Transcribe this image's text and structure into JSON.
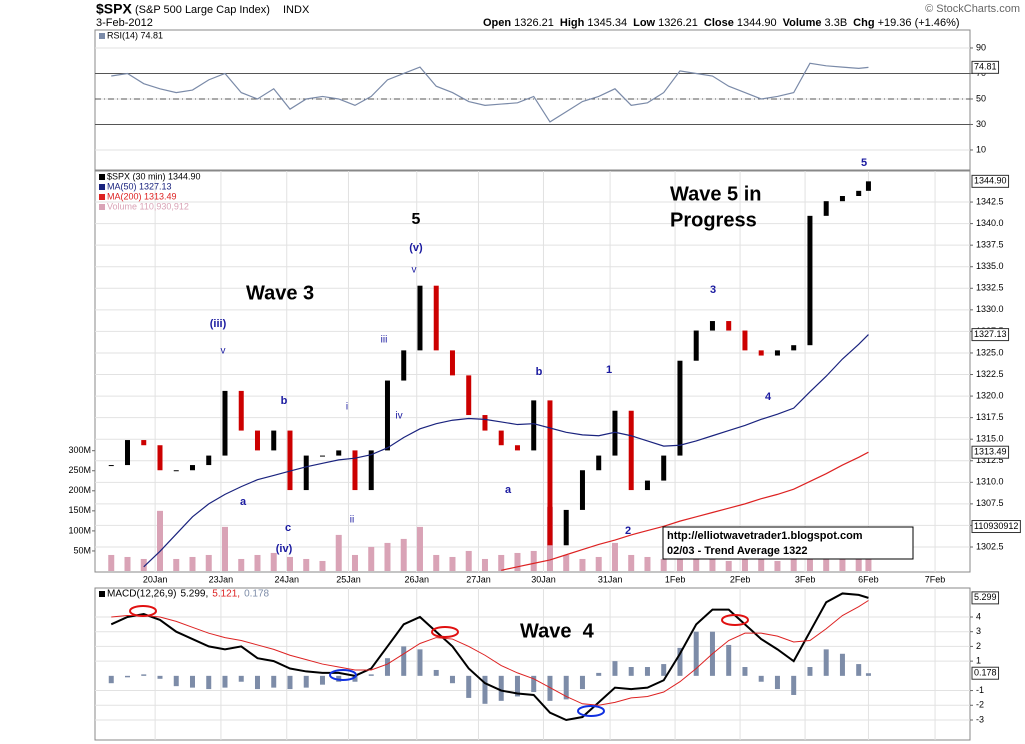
{
  "header": {
    "title": "$SPX",
    "subtitle": "(S&P 500 Large Cap Index)",
    "exchange": "INDX",
    "date": "3-Feb-2012",
    "credit": "© StockCharts.com",
    "quote": [
      {
        "label": "Open",
        "value": "1326.21"
      },
      {
        "label": "High",
        "value": "1345.34"
      },
      {
        "label": "Low",
        "value": "1326.21"
      },
      {
        "label": "Close",
        "value": "1344.90"
      },
      {
        "label": "Volume",
        "value": "3.3B"
      },
      {
        "label": "Chg",
        "value": "+19.36 (+1.46%)"
      }
    ]
  },
  "annotations": [
    "5",
    "(v)",
    "v",
    "Wave 3",
    "(iii)",
    "v",
    "iii",
    "iv",
    "i",
    "ii",
    "b",
    "a",
    "c",
    "(iv)",
    "a",
    "b",
    "1",
    "2",
    "3",
    "4",
    "5",
    "Wave 5 in",
    "Progress",
    "Wave  4"
  ],
  "note_box": [
    "http://elliotwavetrader1.blogspot.com",
    "02/03 - Trend Average 1322"
  ],
  "chart_data": [
    {
      "type": "line",
      "xlim": [
        0,
        53.85
      ],
      "ylim": [
        -5.7,
        104.1
      ],
      "yticks": [
        90,
        70,
        50,
        30,
        10
      ],
      "bands": [
        70,
        30
      ],
      "midline": 50,
      "grid": true,
      "x": [
        1,
        2,
        3,
        4,
        5,
        6,
        7,
        8,
        9,
        10,
        11,
        12,
        13,
        14,
        15,
        16,
        17,
        18,
        19,
        20,
        21,
        22,
        23,
        24,
        25,
        26,
        27,
        28,
        29,
        30,
        31,
        32,
        33,
        34,
        35,
        36,
        37,
        38,
        39,
        40,
        41,
        42,
        43,
        44,
        45,
        46,
        47,
        47.6
      ],
      "series": [
        {
          "name": "RSI(14) 74.81",
          "tag": "74.81",
          "color": "#7a8aa8",
          "style": "line",
          "values": [
            68,
            70,
            62,
            58,
            55,
            57,
            65,
            70,
            55,
            50,
            58,
            42,
            50,
            52,
            50,
            45,
            52,
            65,
            70,
            75,
            60,
            55,
            48,
            45,
            46,
            47,
            52,
            32,
            40,
            48,
            52,
            58,
            45,
            47,
            55,
            72,
            70,
            68,
            60,
            55,
            50,
            52,
            55,
            78,
            76,
            75,
            74,
            74.81
          ]
        }
      ]
    },
    {
      "type": "candlestick",
      "xlim": [
        0,
        53.85
      ],
      "ylim": [
        1299.6,
        1346.1
      ],
      "grid": true,
      "yticks": [
        1302.5,
        {
          "value": 1305,
          "label": "1305.0"
        },
        1307.5,
        {
          "value": 1310,
          "label": "1310.0"
        },
        1312.5,
        {
          "value": 1315,
          "label": "1315.0"
        },
        1317.5,
        {
          "value": 1320,
          "label": "1320.0"
        },
        1322.5,
        {
          "value": 1325,
          "label": "1325.0"
        },
        1327.5,
        {
          "value": 1330,
          "label": "1330.0"
        },
        1332.5,
        {
          "value": 1335,
          "label": "1335.0"
        },
        1337.5,
        {
          "value": 1340,
          "label": "1340.0"
        },
        1342.5
      ],
      "vlim": [
        0,
        1000000000
      ],
      "vticks": [
        {
          "value": 300000000,
          "label": "300M"
        },
        {
          "value": 250000000,
          "label": "250M"
        },
        {
          "value": 200000000,
          "label": "200M"
        },
        {
          "value": 150000000,
          "label": "150M"
        },
        {
          "value": 100000000,
          "label": "100M"
        },
        {
          "value": 50000000,
          "label": "50M"
        }
      ],
      "xticks": [
        {
          "value": 3.7,
          "label": "20Jan"
        },
        {
          "value": 7.75,
          "label": "23Jan"
        },
        {
          "value": 11.8,
          "label": "24Jan"
        },
        {
          "value": 15.6,
          "label": "25Jan"
        },
        {
          "value": 19.8,
          "label": "26Jan"
        },
        {
          "value": 23.6,
          "label": "27Jan"
        },
        {
          "value": 27.6,
          "label": "30Jan"
        },
        {
          "value": 31.7,
          "label": "31Jan"
        },
        {
          "value": 35.7,
          "label": "1Feb"
        },
        {
          "value": 39.7,
          "label": "2Feb"
        },
        {
          "value": 43.7,
          "label": "3Feb"
        },
        {
          "value": 47.6,
          "label": "6Feb"
        },
        {
          "value": 51.7,
          "label": "7Feb"
        }
      ],
      "x": [
        1,
        2,
        3,
        4,
        5,
        6,
        7,
        8,
        9,
        10,
        11,
        12,
        13,
        14,
        15,
        16,
        17,
        18,
        19,
        20,
        21,
        22,
        23,
        24,
        25,
        26,
        27,
        28,
        29,
        30,
        31,
        32,
        33,
        34,
        35,
        36,
        37,
        38,
        39,
        40,
        41,
        42,
        43,
        44,
        45,
        46,
        47,
        47.6
      ],
      "series": [
        {
          "name": "$SPX (30 min) 1344.90",
          "tag": "1344.90",
          "color": "#000000",
          "down_color": "#cc0000",
          "style": "candles",
          "values": [
            1312,
            1314.9,
            1314.3,
            1311.4,
            1311.4,
            1312,
            1313.1,
            1320.6,
            1316,
            1313.7,
            1316,
            1309.1,
            1313.1,
            1313.1,
            1313.7,
            1309.1,
            1313.7,
            1321.8,
            1325.3,
            1332.8,
            1325.3,
            1322.4,
            1317.8,
            1316,
            1314.3,
            1313.7,
            1319.5,
            1302.7,
            1306.8,
            1311.4,
            1313.1,
            1318.3,
            1309.1,
            1310.2,
            1313.1,
            1324.1,
            1327.6,
            1328.7,
            1327.6,
            1325.3,
            1324.7,
            1325.3,
            1325.9,
            1340.9,
            1342.6,
            1343.2,
            1343.8,
            1344.9
          ]
        },
        {
          "name": "MA(50) 1327.13",
          "tag": "1327.13",
          "color": "#1a237e",
          "style": "line",
          "values": [
            null,
            null,
            1300.2,
            1302,
            1304,
            1306,
            1307.5,
            1308.6,
            1309.5,
            1310.3,
            1310.8,
            1311.3,
            1311.8,
            1312.2,
            1312.6,
            1312.8,
            1313.2,
            1314,
            1315.2,
            1316.2,
            1316.8,
            1317.2,
            1317.4,
            1317.3,
            1317,
            1316.7,
            1316.8,
            1316.3,
            1315.8,
            1315.5,
            1315.4,
            1315.8,
            1315.4,
            1314.8,
            1314.2,
            1314.3,
            1314.8,
            1315.4,
            1316,
            1316.6,
            1317.3,
            1317.9,
            1318.6,
            1320.5,
            1322.3,
            1324.3,
            1326,
            1327.13
          ]
        },
        {
          "name": "MA(200) 1313.49",
          "tag": "1313.49",
          "color": "#dd2222",
          "style": "line",
          "values": [
            null,
            null,
            null,
            null,
            null,
            null,
            null,
            null,
            null,
            null,
            null,
            null,
            null,
            null,
            null,
            null,
            null,
            null,
            null,
            null,
            null,
            null,
            null,
            null,
            1299.8,
            1300.2,
            1300.6,
            1301,
            1301.6,
            1302.2,
            1302.8,
            1303.3,
            1303.9,
            1304.4,
            1304.9,
            1305.5,
            1306,
            1306.5,
            1307,
            1307.5,
            1308.1,
            1308.6,
            1309.2,
            1310.1,
            1311,
            1312,
            1312.9,
            1313.49
          ]
        },
        {
          "name": "Volume 110,930,912",
          "tag": "110930912",
          "color": "#d9a3b6",
          "style": "volume",
          "values": [
            40000000,
            35000000,
            30000000,
            150000000,
            30000000,
            35000000,
            40000000,
            110000000,
            30000000,
            40000000,
            45000000,
            35000000,
            30000000,
            25000000,
            90000000,
            40000000,
            60000000,
            70000000,
            80000000,
            110000000,
            40000000,
            35000000,
            50000000,
            30000000,
            40000000,
            45000000,
            50000000,
            160000000,
            40000000,
            30000000,
            35000000,
            70000000,
            40000000,
            35000000,
            30000000,
            60000000,
            35000000,
            30000000,
            25000000,
            35000000,
            30000000,
            25000000,
            35000000,
            60000000,
            35000000,
            40000000,
            30000000,
            110930912
          ]
        }
      ]
    },
    {
      "type": "line",
      "xlim": [
        0,
        53.85
      ],
      "ylim": [
        -4.36,
        5.97
      ],
      "yticks": [
        4,
        3,
        2,
        1,
        -1,
        -2,
        -3
      ],
      "grid": true,
      "legend_title": "MACD(12,26,9)",
      "xticks": [
        {
          "value": 3.7,
          "label": "20Jan"
        },
        {
          "value": 7.75,
          "label": "23Jan"
        },
        {
          "value": 11.8,
          "label": "24Jan"
        },
        {
          "value": 15.6,
          "label": "25Jan"
        },
        {
          "value": 19.8,
          "label": "26Jan"
        },
        {
          "value": 23.6,
          "label": "27Jan"
        },
        {
          "value": 27.6,
          "label": "30Jan"
        },
        {
          "value": 31.7,
          "label": "31Jan"
        },
        {
          "value": 35.7,
          "label": "1Feb"
        },
        {
          "value": 39.7,
          "label": "2Feb"
        },
        {
          "value": 43.7,
          "label": "3Feb"
        },
        {
          "value": 47.6,
          "label": "6Feb"
        },
        {
          "value": 51.7,
          "label": "7Feb"
        }
      ],
      "x": [
        1,
        2,
        3,
        4,
        5,
        6,
        7,
        8,
        9,
        10,
        11,
        12,
        13,
        14,
        15,
        16,
        17,
        18,
        19,
        20,
        21,
        22,
        23,
        24,
        25,
        26,
        27,
        28,
        29,
        30,
        31,
        32,
        33,
        34,
        35,
        36,
        37,
        38,
        39,
        40,
        41,
        42,
        43,
        44,
        45,
        46,
        47,
        47.6
      ],
      "series": [
        {
          "name": "5.299,",
          "tag": "5.299",
          "color": "#000000",
          "style": "line",
          "width": 2,
          "values": [
            3.5,
            4.0,
            4.2,
            3.8,
            3.0,
            2.5,
            2.0,
            1.8,
            2.0,
            1.2,
            1.0,
            0.5,
            0.3,
            0.2,
            0.2,
            0.0,
            0.5,
            2.0,
            3.5,
            4.0,
            3.0,
            2.0,
            0.5,
            -0.5,
            -1,
            -1.2,
            -1.3,
            -2.5,
            -3.0,
            -2.8,
            -1.8,
            -0.8,
            -0.9,
            -0.8,
            -0.3,
            1.5,
            3.5,
            4.5,
            4.5,
            3.5,
            2.5,
            1.8,
            1.0,
            3.0,
            5.0,
            5.6,
            5.5,
            5.299
          ]
        },
        {
          "name": "5.121,",
          "color": "#dd2222",
          "style": "line",
          "width": 1,
          "values": [
            4.0,
            4.1,
            4.1,
            4.0,
            3.7,
            3.3,
            2.9,
            2.6,
            2.4,
            2.1,
            1.8,
            1.4,
            1.1,
            0.8,
            0.6,
            0.4,
            0.4,
            0.8,
            1.5,
            2.2,
            2.6,
            2.5,
            2.0,
            1.4,
            0.7,
            0.2,
            -0.2,
            -0.8,
            -1.4,
            -1.9,
            -2.0,
            -1.8,
            -1.5,
            -1.4,
            -1.1,
            -0.4,
            0.5,
            1.5,
            2.4,
            2.9,
            2.9,
            2.7,
            2.3,
            2.4,
            3.2,
            4.1,
            4.7,
            5.121
          ]
        },
        {
          "name": "0.178",
          "tag": "0.178",
          "color": "#7d8ca8",
          "style": "histogram",
          "values": [
            -0.5,
            -0.1,
            0.1,
            -0.2,
            -0.7,
            -0.8,
            -0.9,
            -0.8,
            -0.4,
            -0.9,
            -0.8,
            -0.9,
            -0.8,
            -0.6,
            -0.4,
            -0.4,
            0.1,
            1.2,
            2.0,
            1.8,
            0.4,
            -0.5,
            -1.5,
            -1.9,
            -1.7,
            -1.4,
            -1.1,
            -1.7,
            -1.6,
            -0.9,
            0.2,
            1.0,
            0.6,
            0.6,
            0.8,
            1.9,
            3.0,
            3.0,
            2.1,
            0.6,
            -0.4,
            -0.9,
            -1.3,
            0.6,
            1.8,
            1.5,
            0.8,
            0.178
          ]
        }
      ]
    }
  ]
}
